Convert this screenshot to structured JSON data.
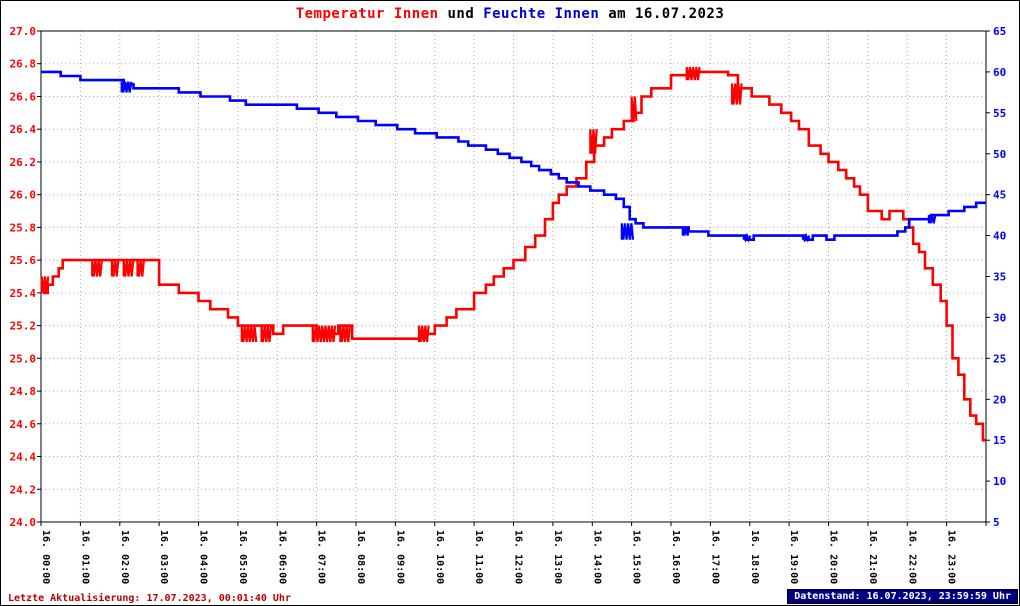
{
  "title": {
    "part1": "Temperatur Innen",
    "part2": " und ",
    "part3": "Feuchte Innen",
    "part4": " am 16.07.2023"
  },
  "footer": {
    "left": "Letzte Aktualisierung: 17.07.2023, 00:01:40 Uhr",
    "right": "Datenstand: 16.07.2023, 23:59:59 Uhr"
  },
  "colors": {
    "temp": "#ff0000",
    "hum": "#0000ff",
    "grid": "#aaaaaa",
    "axis": "#000000",
    "title_temp": "#ff0000",
    "title_hum": "#0000cc",
    "footer_left_fg": "#bb0000",
    "footer_right_bg": "#000080",
    "footer_right_fg": "#ffffff"
  },
  "chart_data": {
    "type": "line",
    "title": "Temperatur Innen und Feuchte Innen am 16.07.2023",
    "grid": "dotted",
    "x_axis": {
      "range_hours": [
        0,
        24
      ],
      "labels": [
        "16. 00:00",
        "16. 01:00",
        "16. 02:00",
        "16. 03:00",
        "16. 04:00",
        "16. 05:00",
        "16. 06:00",
        "16. 07:00",
        "16. 08:00",
        "16. 09:00",
        "16. 10:00",
        "16. 11:00",
        "16. 12:00",
        "16. 13:00",
        "16. 14:00",
        "16. 15:00",
        "16. 16:00",
        "16. 17:00",
        "16. 18:00",
        "16. 19:00",
        "16. 20:00",
        "16. 21:00",
        "16. 22:00",
        "16. 23:00"
      ]
    },
    "y_left": {
      "min": 24.0,
      "max": 27.0,
      "step": 0.2,
      "ticks": [
        "27.0",
        "26.8",
        "26.6",
        "26.4",
        "26.2",
        "26.0",
        "25.8",
        "25.6",
        "25.4",
        "25.2",
        "25.0",
        "24.8",
        "24.6",
        "24.4",
        "24.2",
        "24.0"
      ]
    },
    "y_right": {
      "min": 5,
      "max": 65,
      "step": 5,
      "ticks": [
        "65",
        "60",
        "55",
        "50",
        "45",
        "40",
        "35",
        "30",
        "25",
        "20",
        "15",
        "10",
        "5"
      ]
    },
    "series": [
      {
        "name": "Temperatur Innen",
        "axis": "left",
        "color": "#ff0000",
        "points": [
          [
            0,
            25.45
          ],
          [
            0.08,
            25.4
          ],
          [
            0.17,
            25.45
          ],
          [
            0.3,
            25.5
          ],
          [
            0.45,
            25.55
          ],
          [
            0.55,
            25.6
          ],
          [
            3,
            25.45
          ],
          [
            3.5,
            25.4
          ],
          [
            4,
            25.35
          ],
          [
            4.3,
            25.3
          ],
          [
            4.75,
            25.25
          ],
          [
            5,
            25.2
          ],
          [
            5.9,
            25.15
          ],
          [
            6.15,
            25.2
          ],
          [
            7,
            25.15
          ],
          [
            7.55,
            25.2
          ],
          [
            7.9,
            25.12
          ],
          [
            9.8,
            25.15
          ],
          [
            10,
            25.2
          ],
          [
            10.3,
            25.25
          ],
          [
            10.55,
            25.3
          ],
          [
            11,
            25.4
          ],
          [
            11.3,
            25.45
          ],
          [
            11.5,
            25.5
          ],
          [
            11.75,
            25.55
          ],
          [
            12,
            25.6
          ],
          [
            12.3,
            25.68
          ],
          [
            12.55,
            25.75
          ],
          [
            12.8,
            25.85
          ],
          [
            13,
            25.95
          ],
          [
            13.15,
            26
          ],
          [
            13.35,
            26.05
          ],
          [
            13.6,
            26.1
          ],
          [
            13.85,
            26.2
          ],
          [
            14.05,
            26.3
          ],
          [
            14.3,
            26.35
          ],
          [
            14.5,
            26.4
          ],
          [
            14.8,
            26.45
          ],
          [
            15.05,
            26.5
          ],
          [
            15.25,
            26.6
          ],
          [
            15.5,
            26.65
          ],
          [
            16,
            26.73
          ],
          [
            16.45,
            26.75
          ],
          [
            17.45,
            26.73
          ],
          [
            17.7,
            26.65
          ],
          [
            18.05,
            26.6
          ],
          [
            18.5,
            26.55
          ],
          [
            18.8,
            26.5
          ],
          [
            19.05,
            26.45
          ],
          [
            19.25,
            26.4
          ],
          [
            19.5,
            26.3
          ],
          [
            19.8,
            26.25
          ],
          [
            20,
            26.2
          ],
          [
            20.25,
            26.15
          ],
          [
            20.45,
            26.1
          ],
          [
            20.65,
            26.05
          ],
          [
            20.8,
            26
          ],
          [
            21,
            25.9
          ],
          [
            21.35,
            25.85
          ],
          [
            21.55,
            25.9
          ],
          [
            21.9,
            25.85
          ],
          [
            22.05,
            25.8
          ],
          [
            22.15,
            25.7
          ],
          [
            22.3,
            25.65
          ],
          [
            22.45,
            25.55
          ],
          [
            22.65,
            25.45
          ],
          [
            22.85,
            25.35
          ],
          [
            23,
            25.2
          ],
          [
            23.15,
            25
          ],
          [
            23.3,
            24.9
          ],
          [
            23.45,
            24.75
          ],
          [
            23.6,
            24.65
          ],
          [
            23.75,
            24.6
          ],
          [
            23.92,
            24.5
          ],
          [
            24,
            24.5
          ]
        ]
      },
      {
        "name": "Feuchte Innen",
        "axis": "right",
        "color": "#0000ff",
        "points": [
          [
            0,
            60
          ],
          [
            0.5,
            59.5
          ],
          [
            1,
            59
          ],
          [
            2.1,
            58.5
          ],
          [
            2.35,
            58
          ],
          [
            3.5,
            57.5
          ],
          [
            4.05,
            57
          ],
          [
            4.8,
            56.5
          ],
          [
            5.2,
            56
          ],
          [
            6.5,
            55.5
          ],
          [
            7.05,
            55
          ],
          [
            7.5,
            54.5
          ],
          [
            8.05,
            54
          ],
          [
            8.5,
            53.5
          ],
          [
            9.05,
            53
          ],
          [
            9.5,
            52.5
          ],
          [
            10.05,
            52
          ],
          [
            10.6,
            51.5
          ],
          [
            10.85,
            51
          ],
          [
            11.3,
            50.5
          ],
          [
            11.6,
            50
          ],
          [
            11.9,
            49.5
          ],
          [
            12.2,
            49
          ],
          [
            12.45,
            48.5
          ],
          [
            12.65,
            48
          ],
          [
            12.95,
            47.5
          ],
          [
            13.15,
            47
          ],
          [
            13.35,
            46.5
          ],
          [
            13.65,
            46
          ],
          [
            13.95,
            45.5
          ],
          [
            14.3,
            45
          ],
          [
            14.6,
            44.5
          ],
          [
            14.8,
            43.5
          ],
          [
            14.95,
            42
          ],
          [
            15.1,
            41.5
          ],
          [
            15.3,
            41
          ],
          [
            16.45,
            40.5
          ],
          [
            16.95,
            40
          ],
          [
            17.9,
            39.5
          ],
          [
            18.1,
            40
          ],
          [
            19.4,
            39.5
          ],
          [
            19.6,
            40
          ],
          [
            19.95,
            39.5
          ],
          [
            20.15,
            40
          ],
          [
            21.75,
            40.5
          ],
          [
            21.95,
            41
          ],
          [
            22.05,
            42
          ],
          [
            22.6,
            42.5
          ],
          [
            23.05,
            43
          ],
          [
            23.45,
            43.5
          ],
          [
            23.75,
            44
          ],
          [
            24,
            44
          ]
        ]
      }
    ],
    "noise_bands": [
      {
        "series": "temp",
        "t0": 0.02,
        "t1": 0.2,
        "lo": 25.4,
        "hi": 25.5
      },
      {
        "series": "temp",
        "t0": 1.3,
        "t1": 1.55,
        "lo": 25.5,
        "hi": 25.6
      },
      {
        "series": "temp",
        "t0": 1.8,
        "t1": 2.0,
        "lo": 25.5,
        "hi": 25.6
      },
      {
        "series": "temp",
        "t0": 2.1,
        "t1": 2.35,
        "lo": 25.5,
        "hi": 25.6
      },
      {
        "series": "temp",
        "t0": 2.45,
        "t1": 2.65,
        "lo": 25.5,
        "hi": 25.6
      },
      {
        "series": "temp",
        "t0": 5.1,
        "t1": 5.5,
        "lo": 25.1,
        "hi": 25.2
      },
      {
        "series": "temp",
        "t0": 5.6,
        "t1": 5.85,
        "lo": 25.1,
        "hi": 25.2
      },
      {
        "series": "temp",
        "t0": 6.9,
        "t1": 7.5,
        "lo": 25.1,
        "hi": 25.2
      },
      {
        "series": "temp",
        "t0": 7.6,
        "t1": 7.85,
        "lo": 25.1,
        "hi": 25.2
      },
      {
        "series": "temp",
        "t0": 9.6,
        "t1": 9.85,
        "lo": 25.1,
        "hi": 25.2
      },
      {
        "series": "temp",
        "t0": 13.95,
        "t1": 14.15,
        "lo": 26.25,
        "hi": 26.4
      },
      {
        "series": "temp",
        "t0": 15.0,
        "t1": 15.15,
        "lo": 26.45,
        "hi": 26.6
      },
      {
        "series": "temp",
        "t0": 16.4,
        "t1": 16.75,
        "lo": 26.7,
        "hi": 26.78
      },
      {
        "series": "temp",
        "t0": 17.55,
        "t1": 17.8,
        "lo": 26.55,
        "hi": 26.68
      },
      {
        "series": "hum",
        "t0": 2.05,
        "t1": 2.3,
        "lo": 57.5,
        "hi": 58.8
      },
      {
        "series": "hum",
        "t0": 14.75,
        "t1": 15.05,
        "lo": 39.5,
        "hi": 41.5
      },
      {
        "series": "hum",
        "t0": 16.3,
        "t1": 16.5,
        "lo": 40,
        "hi": 41
      },
      {
        "series": "hum",
        "t0": 17.85,
        "t1": 18.05,
        "lo": 39.5,
        "hi": 40
      },
      {
        "series": "hum",
        "t0": 19.35,
        "t1": 19.55,
        "lo": 39.5,
        "hi": 40
      },
      {
        "series": "hum",
        "t0": 22.55,
        "t1": 22.72,
        "lo": 41.5,
        "hi": 42.5
      }
    ]
  }
}
